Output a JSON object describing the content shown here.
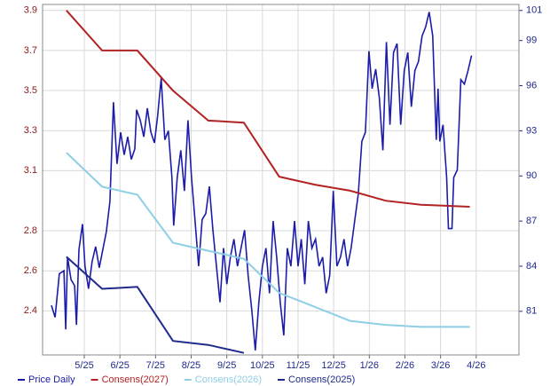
{
  "chart_data": {
    "type": "line",
    "xlim": [
      -1.17,
      12.2
    ],
    "xticks": [
      {
        "value": 0,
        "label": "5/25"
      },
      {
        "value": 1,
        "label": "6/25"
      },
      {
        "value": 2,
        "label": "7/25"
      },
      {
        "value": 3,
        "label": "8/25"
      },
      {
        "value": 4,
        "label": "9/25"
      },
      {
        "value": 5,
        "label": "10/25"
      },
      {
        "value": 6,
        "label": "11/25"
      },
      {
        "value": 7,
        "label": "12/25"
      },
      {
        "value": 8,
        "label": "1/26"
      },
      {
        "value": 9,
        "label": "2/26"
      },
      {
        "value": 10,
        "label": "3/26"
      },
      {
        "value": 11,
        "label": "4/26"
      }
    ],
    "ylim": [
      2.18,
      3.93
    ],
    "yticks": [
      2.4,
      2.6,
      2.8,
      3.1,
      3.3,
      3.5,
      3.7,
      3.9
    ],
    "y2lim": [
      78.1,
      101.4
    ],
    "y2ticks": [
      81,
      84,
      87,
      90,
      93,
      96,
      99,
      101
    ],
    "grid": true,
    "legend": "bottom",
    "series": [
      {
        "name": "Price Daily",
        "color": "#1c1caa",
        "axis": "y2",
        "x": [
          -0.92,
          -0.82,
          -0.7,
          -0.57,
          -0.52,
          -0.47,
          -0.37,
          -0.27,
          -0.22,
          -0.15,
          -0.05,
          0.02,
          0.12,
          0.22,
          0.32,
          0.42,
          0.52,
          0.62,
          0.72,
          0.82,
          0.92,
          1.02,
          1.12,
          1.22,
          1.32,
          1.42,
          1.47,
          1.57,
          1.67,
          1.77,
          1.87,
          1.97,
          2.06,
          2.16,
          2.26,
          2.36,
          2.46,
          2.51,
          2.61,
          2.71,
          2.81,
          2.91,
          3.01,
          3.11,
          3.21,
          3.31,
          3.41,
          3.51,
          3.61,
          3.71,
          3.81,
          3.91,
          4.0,
          4.1,
          4.2,
          4.3,
          4.4,
          4.5,
          4.6,
          4.7,
          4.8,
          4.9,
          5.0,
          5.1,
          5.2,
          5.3,
          5.4,
          5.5,
          5.6,
          5.7,
          5.8,
          5.9,
          6.0,
          6.09,
          6.19,
          6.29,
          6.39,
          6.49,
          6.59,
          6.69,
          6.79,
          6.89,
          6.99,
          7.09,
          7.19,
          7.29,
          7.39,
          7.49,
          7.59,
          7.69,
          7.79,
          7.89,
          7.99,
          8.08,
          8.18,
          8.28,
          8.38,
          8.48,
          8.58,
          8.68,
          8.78,
          8.88,
          8.98,
          9.08,
          9.18,
          9.28,
          9.38,
          9.48,
          9.58,
          9.68,
          9.78,
          9.88,
          9.93,
          9.98,
          10.07,
          10.17,
          10.22,
          10.32,
          10.37,
          10.47,
          10.57,
          10.67,
          10.77,
          10.87
        ],
        "values": [
          81.4,
          80.6,
          83.5,
          83.7,
          79.8,
          84.6,
          83.1,
          82.7,
          80.1,
          85.1,
          86.8,
          84.0,
          82.5,
          84.3,
          85.3,
          83.9,
          85.1,
          86.3,
          88.3,
          94.9,
          90.8,
          92.9,
          91.4,
          92.6,
          91.1,
          91.8,
          94.4,
          93.7,
          92.6,
          94.5,
          92.9,
          92.2,
          94.0,
          96.5,
          92.4,
          93.0,
          89.9,
          86.7,
          89.9,
          91.7,
          89.0,
          93.7,
          89.9,
          87.0,
          84.0,
          87.1,
          87.5,
          89.3,
          86.4,
          84.0,
          81.6,
          85.2,
          82.8,
          84.6,
          85.8,
          84.0,
          85.2,
          86.4,
          83.4,
          81.1,
          78.4,
          81.6,
          84.0,
          85.2,
          82.2,
          87.0,
          84.6,
          81.6,
          79.4,
          85.2,
          84.0,
          87.0,
          84.0,
          85.8,
          82.8,
          87.0,
          85.2,
          85.8,
          84.0,
          84.6,
          82.2,
          83.4,
          89.0,
          84.0,
          84.6,
          85.8,
          84.0,
          85.2,
          87.0,
          88.8,
          92.3,
          92.9,
          98.3,
          95.8,
          97.1,
          95.2,
          91.7,
          98.9,
          93.4,
          98.2,
          98.8,
          93.4,
          97.0,
          98.2,
          94.6,
          97.0,
          97.6,
          99.3,
          99.9,
          100.9,
          99.3,
          92.4,
          95.8,
          92.3,
          93.4,
          89.9,
          86.5,
          86.5,
          89.9,
          90.4,
          96.4,
          96.1,
          97.0,
          98.0
        ]
      },
      {
        "name": "Consens(2027)",
        "color": "#b32222",
        "x": [
          -0.5,
          0.5,
          1.49,
          2.49,
          3.48,
          4.48,
          5.47,
          6.47,
          7.46,
          8.46,
          9.45,
          10.82
        ],
        "values": [
          3.9,
          3.7,
          3.7,
          3.5,
          3.35,
          3.34,
          3.07,
          3.03,
          3.0,
          2.95,
          2.93,
          2.92
        ]
      },
      {
        "name": "Consens(2026)",
        "color": "#8ecfe6",
        "x": [
          -0.5,
          0.5,
          1.49,
          2.49,
          3.48,
          4.48,
          5.47,
          6.47,
          7.46,
          8.46,
          9.45,
          10.82
        ],
        "values": [
          3.19,
          3.02,
          2.98,
          2.74,
          2.7,
          2.66,
          2.49,
          2.42,
          2.35,
          2.33,
          2.32,
          2.32
        ]
      },
      {
        "name": "Consens(2025)",
        "color": "#1f2a8c",
        "x": [
          -0.5,
          0.5,
          1.49,
          2.49,
          3.48,
          4.48
        ],
        "values": [
          2.67,
          2.51,
          2.52,
          2.25,
          2.23,
          2.19
        ]
      }
    ]
  }
}
